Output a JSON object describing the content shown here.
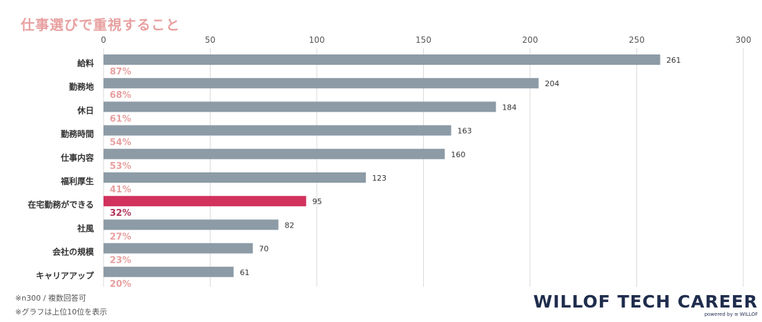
{
  "title": "仕事選びで重視すること",
  "notes": [
    "※n300 / 複数回答可",
    "※グラフは上位10位を表示"
  ],
  "brand": {
    "name": "WILLOF TECH CAREER",
    "sub": "powered by ≡ WILLOF"
  },
  "colors": {
    "bar": "#8c9ba6",
    "highlight": "#d1325e",
    "pct": "#e8a0a0",
    "pct_highlight": "#b0355a",
    "grid": "#d9d9d9"
  },
  "chart_data": {
    "type": "bar",
    "orientation": "horizontal",
    "title": "仕事選びで重視すること",
    "xlim": [
      0,
      300
    ],
    "xticks": [
      0,
      50,
      100,
      150,
      200,
      250,
      300
    ],
    "categories": [
      "給料",
      "勤務地",
      "休日",
      "勤務時間",
      "仕事内容",
      "福利厚生",
      "在宅勤務ができる",
      "社風",
      "会社の規模",
      "キャリアアップ"
    ],
    "values": [
      261,
      204,
      184,
      163,
      160,
      123,
      95,
      82,
      70,
      61
    ],
    "percent_labels": [
      "87%",
      "68%",
      "61%",
      "54%",
      "53%",
      "41%",
      "32%",
      "27%",
      "23%",
      "20%"
    ],
    "highlight_index": 6
  }
}
